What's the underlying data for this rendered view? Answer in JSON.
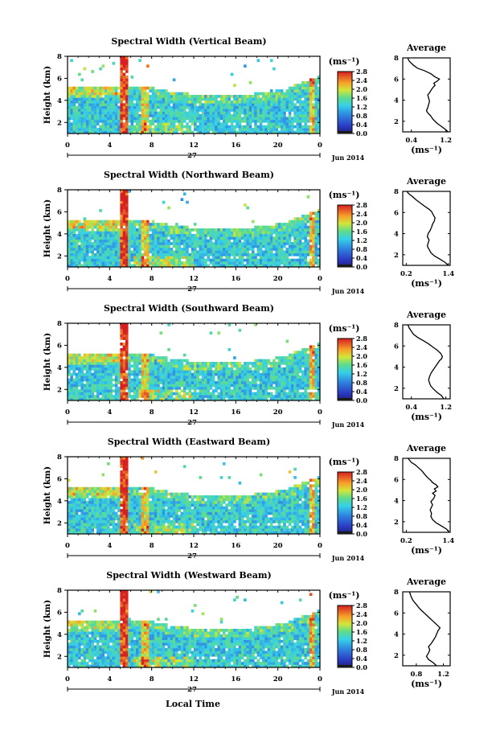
{
  "figure": {
    "x_axis_label": "Local Time",
    "date_label": "Jun 2014",
    "day_label": "27"
  },
  "chart_data": [
    {
      "type": "heatmap",
      "title": "Spectral Width (Vertical Beam)",
      "ylabel": "Height (km)",
      "xlabel": "Local Time",
      "x_ticks": [
        "0",
        "4",
        "8",
        "12",
        "16",
        "20",
        "0"
      ],
      "y_ticks": [
        "2",
        "4",
        "6",
        "8"
      ],
      "xlim": [
        0,
        24
      ],
      "ylim": [
        1,
        8
      ],
      "colorbar": {
        "unit": "(ms⁻¹)",
        "ticks": [
          "0.0",
          "0.4",
          "0.8",
          "1.2",
          "1.6",
          "2.0",
          "2.4",
          "2.8"
        ],
        "range": [
          0.0,
          2.8
        ]
      },
      "average": {
        "title": "Average",
        "xlabel": "(ms⁻¹)",
        "x_ticks": [
          "0.4",
          "1.2"
        ],
        "xlim": [
          0.2,
          1.3
        ],
        "y_ticks": [
          "2",
          "4",
          "6",
          "8"
        ],
        "profile_x": [
          1.25,
          1.2,
          1.1,
          1.0,
          0.9,
          0.85,
          0.78,
          0.75,
          0.78,
          0.8,
          0.82,
          0.8,
          0.78,
          0.82,
          0.85,
          0.9,
          0.95,
          0.92,
          1.0,
          1.05,
          0.95,
          0.85,
          0.7,
          0.55,
          0.45,
          0.4,
          0.35,
          0.33,
          0.32
        ],
        "profile_y": [
          1.0,
          1.2,
          1.5,
          1.8,
          2.2,
          2.5,
          2.8,
          3.0,
          3.3,
          3.6,
          3.9,
          4.2,
          4.5,
          4.7,
          4.9,
          5.2,
          5.4,
          5.6,
          5.8,
          6.0,
          6.2,
          6.5,
          6.8,
          7.0,
          7.3,
          7.5,
          7.7,
          7.85,
          8.0
        ]
      }
    },
    {
      "type": "heatmap",
      "title": "Spectral Width (Northward Beam)",
      "ylabel": "Height (km)",
      "xlabel": "Local Time",
      "x_ticks": [
        "0",
        "4",
        "8",
        "12",
        "16",
        "20",
        "0"
      ],
      "y_ticks": [
        "2",
        "4",
        "6",
        "8"
      ],
      "xlim": [
        0,
        24
      ],
      "ylim": [
        1,
        8
      ],
      "colorbar": {
        "unit": "(ms⁻¹)",
        "ticks": [
          "0.0",
          "0.4",
          "0.8",
          "1.2",
          "1.6",
          "2.0",
          "2.4",
          "2.8"
        ],
        "range": [
          0.0,
          2.8
        ]
      },
      "average": {
        "title": "Average",
        "xlabel": "(ms⁻¹)",
        "x_ticks": [
          "0.2",
          "1.4"
        ],
        "xlim": [
          0.1,
          1.45
        ],
        "y_ticks": [
          "2",
          "4",
          "6",
          "8"
        ],
        "profile_x": [
          1.4,
          1.3,
          1.15,
          1.0,
          0.9,
          0.85,
          0.8,
          0.82,
          0.85,
          0.8,
          0.82,
          0.88,
          0.92,
          0.95,
          1.0,
          1.02,
          0.98,
          0.95,
          0.92,
          0.85,
          0.72,
          0.6,
          0.48,
          0.38,
          0.3,
          0.25,
          0.22
        ],
        "profile_y": [
          1.0,
          1.3,
          1.6,
          1.9,
          2.2,
          2.5,
          2.8,
          3.1,
          3.4,
          3.7,
          4.0,
          4.3,
          4.6,
          4.9,
          5.2,
          5.5,
          5.7,
          5.9,
          6.1,
          6.3,
          6.6,
          6.9,
          7.2,
          7.5,
          7.7,
          7.85,
          8.0
        ]
      }
    },
    {
      "type": "heatmap",
      "title": "Spectral Width (Southward Beam)",
      "ylabel": "Height (km)",
      "xlabel": "Local Time",
      "x_ticks": [
        "0",
        "4",
        "8",
        "12",
        "16",
        "20",
        "0"
      ],
      "y_ticks": [
        "2",
        "4",
        "6",
        "8"
      ],
      "xlim": [
        0,
        24
      ],
      "ylim": [
        1,
        8
      ],
      "colorbar": {
        "unit": "(ms⁻¹)",
        "ticks": [
          "0.0",
          "0.4",
          "0.8",
          "1.2",
          "1.6",
          "2.0",
          "2.4",
          "2.8"
        ],
        "range": [
          0.0,
          2.8
        ]
      },
      "average": {
        "title": "Average",
        "xlabel": "(ms⁻¹)",
        "x_ticks": [
          "0.4",
          "1.2"
        ],
        "xlim": [
          0.2,
          1.3
        ],
        "y_ticks": [
          "2",
          "4",
          "6",
          "8"
        ],
        "profile_x": [
          1.15,
          1.1,
          1.0,
          0.92,
          0.85,
          0.82,
          0.8,
          0.82,
          0.85,
          0.9,
          0.95,
          1.0,
          1.05,
          1.1,
          1.12,
          1.08,
          1.0,
          0.9,
          0.8,
          0.68,
          0.55,
          0.45,
          0.4,
          0.35,
          0.32
        ],
        "profile_y": [
          1.0,
          1.3,
          1.6,
          1.9,
          2.2,
          2.5,
          2.8,
          3.1,
          3.4,
          3.7,
          4.0,
          4.3,
          4.6,
          4.8,
          5.0,
          5.3,
          5.6,
          5.9,
          6.2,
          6.5,
          6.8,
          7.1,
          7.4,
          7.7,
          8.0
        ]
      }
    },
    {
      "type": "heatmap",
      "title": "Spectral Width (Eastward Beam)",
      "ylabel": "Height (km)",
      "xlabel": "Local Time",
      "x_ticks": [
        "0",
        "4",
        "8",
        "12",
        "16",
        "20",
        "0"
      ],
      "y_ticks": [
        "2",
        "4",
        "6",
        "8"
      ],
      "xlim": [
        0,
        24
      ],
      "ylim": [
        1,
        8
      ],
      "colorbar": {
        "unit": "(ms⁻¹)",
        "ticks": [
          "0.0",
          "0.4",
          "0.8",
          "1.2",
          "1.6",
          "2.0",
          "2.4",
          "2.8"
        ],
        "range": [
          0.0,
          2.8
        ]
      },
      "average": {
        "title": "Average",
        "xlabel": "(ms⁻¹)",
        "x_ticks": [
          "0.2",
          "1.4"
        ],
        "xlim": [
          0.1,
          1.45
        ],
        "y_ticks": [
          "2",
          "4",
          "6",
          "8"
        ],
        "profile_x": [
          1.42,
          1.35,
          1.2,
          1.05,
          0.95,
          0.9,
          0.92,
          0.88,
          0.92,
          0.95,
          0.9,
          0.98,
          1.02,
          0.95,
          1.05,
          1.0,
          1.1,
          1.05,
          0.95,
          0.9,
          0.8,
          0.72,
          0.65,
          0.55,
          0.45,
          0.35,
          0.3,
          0.25
        ],
        "profile_y": [
          1.0,
          1.3,
          1.6,
          1.9,
          2.2,
          2.5,
          2.8,
          3.1,
          3.4,
          3.6,
          3.9,
          4.2,
          4.5,
          4.7,
          4.9,
          5.1,
          5.3,
          5.5,
          5.7,
          5.9,
          6.2,
          6.5,
          6.8,
          7.1,
          7.4,
          7.6,
          7.8,
          8.0
        ]
      }
    },
    {
      "type": "heatmap",
      "title": "Spectral Width (Westward Beam)",
      "ylabel": "Height (km)",
      "xlabel": "Local Time",
      "x_ticks": [
        "0",
        "4",
        "8",
        "12",
        "16",
        "20",
        "0"
      ],
      "y_ticks": [
        "2",
        "4",
        "6",
        "8"
      ],
      "xlim": [
        0,
        24
      ],
      "ylim": [
        1,
        8
      ],
      "colorbar": {
        "unit": "(ms⁻¹)",
        "ticks": [
          "0.0",
          "0.4",
          "0.8",
          "1.2",
          "1.6",
          "2.0",
          "2.4",
          "2.8"
        ],
        "range": [
          0.0,
          2.8
        ]
      },
      "average": {
        "title": "Average",
        "xlabel": "(ms⁻¹)",
        "x_ticks": [
          "0.8",
          "1.2"
        ],
        "xlim": [
          0.6,
          1.3
        ],
        "y_ticks": [
          "2",
          "4",
          "6",
          "8"
        ],
        "profile_x": [
          1.1,
          1.05,
          0.98,
          0.95,
          0.98,
          1.0,
          0.98,
          1.02,
          1.05,
          1.08,
          1.1,
          1.12,
          1.15,
          1.1,
          1.05,
          1.0,
          0.95,
          0.9,
          0.85,
          0.8,
          0.75,
          0.72,
          0.7
        ],
        "profile_y": [
          1.0,
          1.3,
          1.6,
          1.9,
          2.2,
          2.5,
          2.8,
          3.1,
          3.4,
          3.7,
          4.0,
          4.3,
          4.6,
          4.9,
          5.2,
          5.5,
          5.8,
          6.1,
          6.4,
          6.8,
          7.2,
          7.6,
          8.0
        ]
      }
    }
  ]
}
